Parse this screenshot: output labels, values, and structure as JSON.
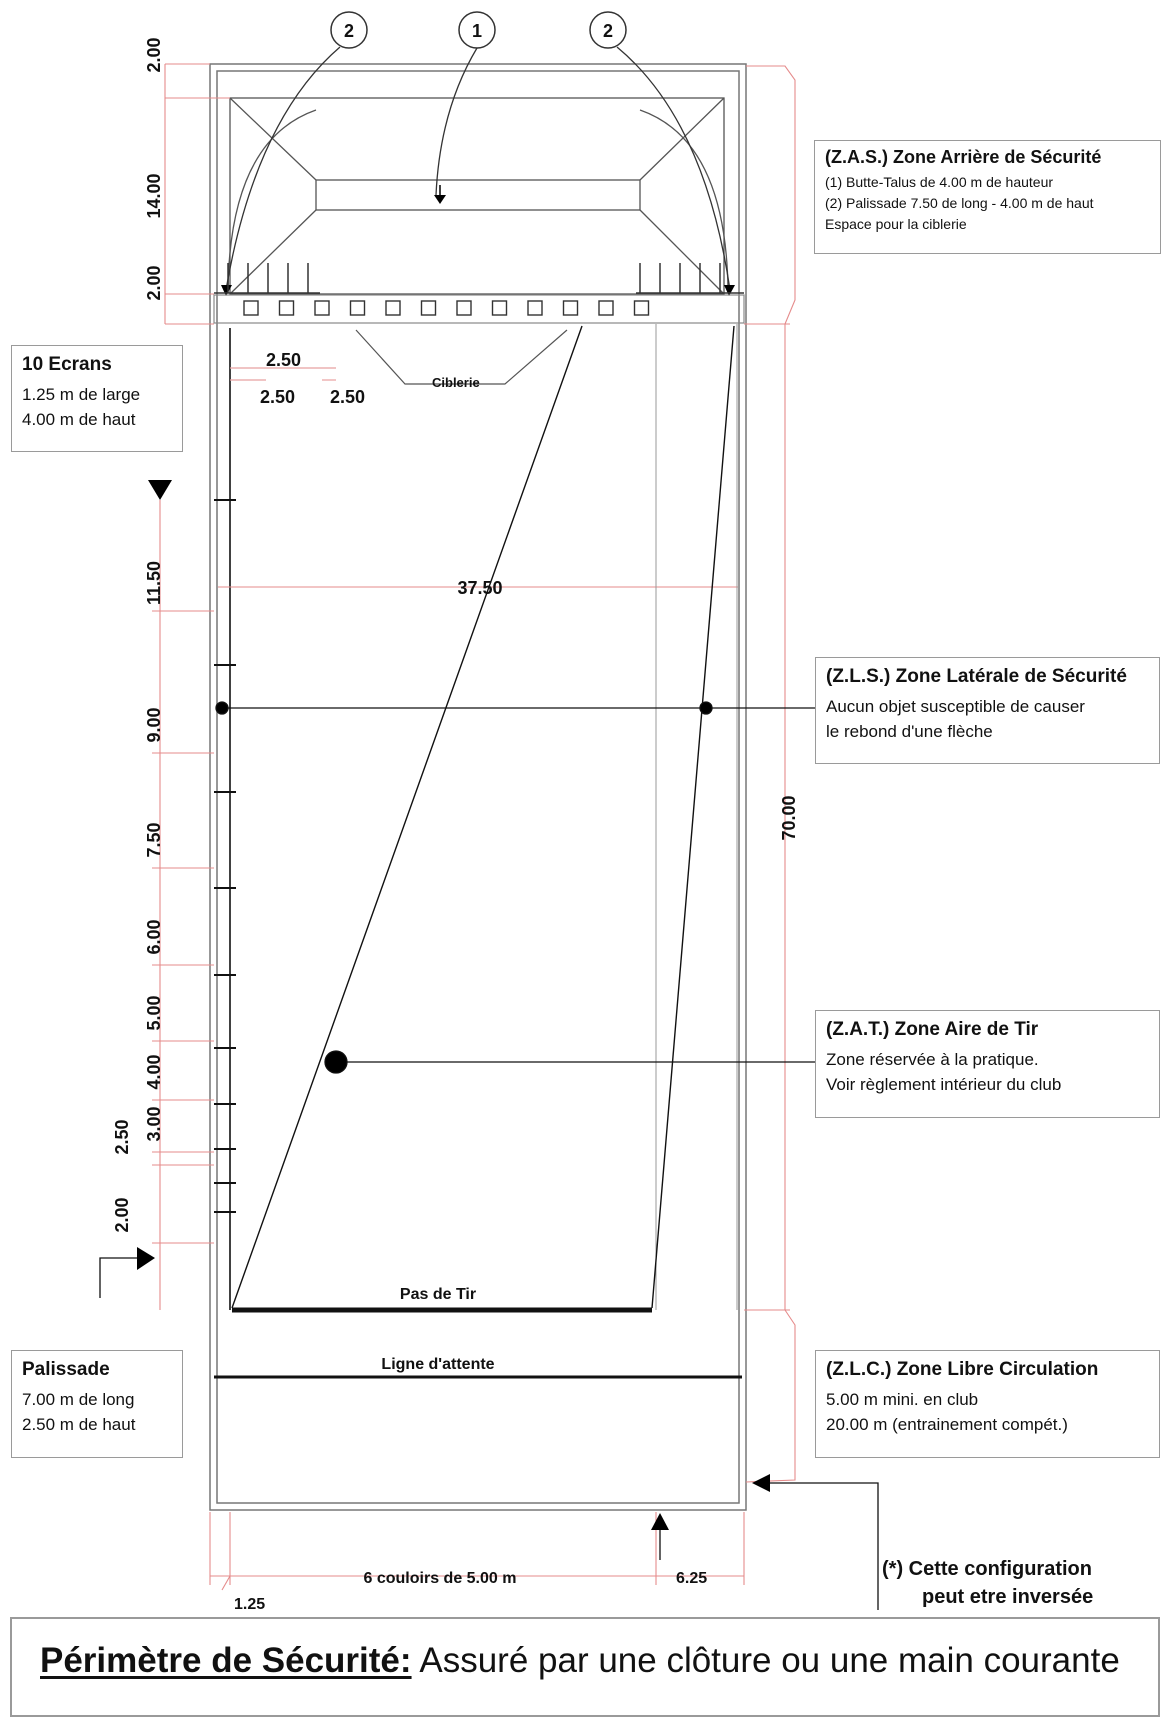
{
  "callouts": {
    "one": "1",
    "two_left": "2",
    "two_right": "2"
  },
  "dimensions": {
    "left": [
      "2.00",
      "14.00",
      "2.00",
      "11.50",
      "9.00",
      "7.50",
      "6.00",
      "5.00",
      "4.00",
      "3.00",
      "2.50",
      "2.00"
    ],
    "ciblerie_spacing": [
      "2.50",
      "2.50",
      "2.50"
    ],
    "width": "37.50",
    "length": "70.00",
    "lanes": "6 couloirs de 5.00 m",
    "right_margin": "6.25",
    "left_margin": "1.25"
  },
  "labels": {
    "ciblerie": "Ciblerie",
    "pas_de_tir": "Pas de Tir",
    "ligne_attente": "Ligne d'attente"
  },
  "boxes": {
    "ecrans": {
      "title": "10 Ecrans",
      "lines": [
        "1.25 m de large",
        "4.00 m de haut"
      ]
    },
    "zas": {
      "title": "(Z.A.S.) Zone Arrière de Sécurité",
      "lines": [
        "(1) Butte-Talus de 4.00 m de hauteur",
        "(2) Palissade 7.50 de long - 4.00 m de haut",
        "Espace pour la ciblerie"
      ]
    },
    "zls": {
      "title": "(Z.L.S.) Zone Latérale de Sécurité",
      "lines": [
        "Aucun objet susceptible de causer",
        "le rebond d'une flèche"
      ]
    },
    "zat": {
      "title": "(Z.A.T.) Zone Aire de Tir",
      "lines": [
        "Zone réservée à la pratique.",
        "Voir règlement intérieur du club"
      ]
    },
    "palissade": {
      "title": "Palissade",
      "lines": [
        "7.00 m de long",
        "2.50 m de haut"
      ]
    },
    "zlc": {
      "title": "(Z.L.C.) Zone Libre Circulation",
      "lines": [
        "5.00 m mini. en club",
        "20.00 m (entrainement compét.)"
      ]
    }
  },
  "note": {
    "line1": "(*) Cette configuration",
    "line2": "peut etre inversée"
  },
  "perimeter": {
    "label": "Périmètre de Sécurité:",
    "text": " Assuré par une clôture ou une main courante"
  }
}
